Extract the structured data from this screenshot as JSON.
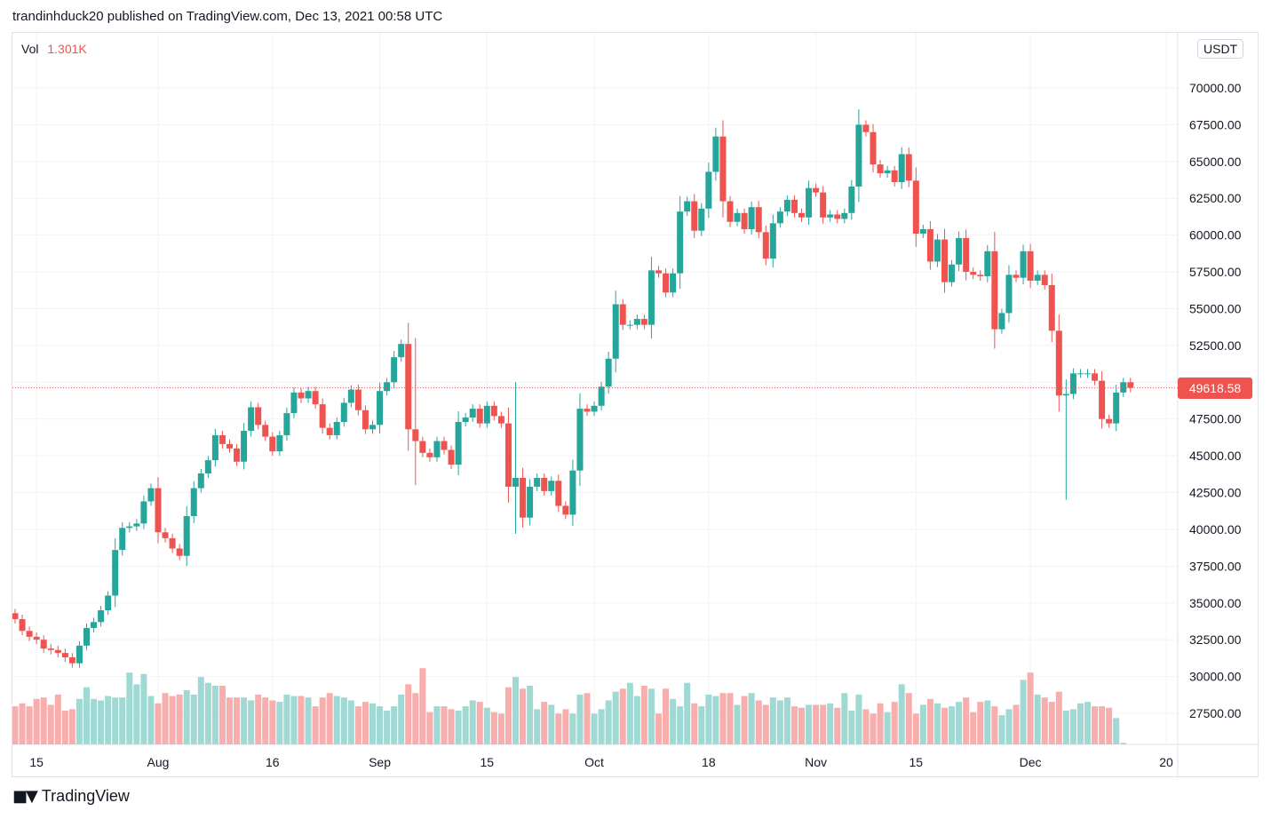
{
  "header": {
    "publisher_text": "trandinhduck20 published on TradingView.com, Dec 13, 2021 00:58 UTC"
  },
  "legend": {
    "vol_label": "Vol",
    "vol_value": "1.301K"
  },
  "currency": "USDT",
  "last_price_label": "49618.58",
  "footer": {
    "brand": "TradingView"
  },
  "colors": {
    "up": "#26a69a",
    "down": "#ef5350",
    "vol_up": "#a0d9d3",
    "vol_down": "#f7aeac",
    "grid": "#f0f3fa"
  },
  "chart_data": {
    "type": "candlestick",
    "title": "",
    "symbol_quote": "USDT",
    "ylim": [
      25000,
      72500
    ],
    "y_ticks": [
      27500,
      30000,
      32500,
      35000,
      37500,
      40000,
      42500,
      45000,
      47500,
      50000,
      52500,
      55000,
      57500,
      60000,
      62500,
      65000,
      67500,
      70000
    ],
    "y_tick_labels": [
      "27500.00",
      "30000.00",
      "32500.00",
      "35000.00",
      "37500.00",
      "40000.00",
      "42500.00",
      "45000.00",
      "47500.00",
      "50000.00",
      "52500.00",
      "55000.00",
      "57500.00",
      "60000.00",
      "62500.00",
      "65000.00",
      "67500.00",
      "70000.00"
    ],
    "x_tick_labels": [
      "15",
      "Aug",
      "16",
      "Sep",
      "15",
      "Oct",
      "18",
      "Nov",
      "15",
      "Dec",
      "20"
    ],
    "x_tick_day_index": [
      3,
      20,
      36,
      51,
      66,
      81,
      97,
      112,
      126,
      142,
      161
    ],
    "start_date": "2021-07-12",
    "last_price": 49618.58,
    "grid": true,
    "closes": [
      33900,
      33100,
      32700,
      32500,
      31900,
      31800,
      31600,
      31300,
      30900,
      32100,
      33300,
      33700,
      34500,
      35500,
      38600,
      40100,
      40200,
      40400,
      41900,
      42800,
      39800,
      39400,
      38700,
      38200,
      40900,
      42800,
      43800,
      44700,
      46400,
      45800,
      45500,
      44600,
      46700,
      48300,
      47100,
      46300,
      45300,
      46400,
      47900,
      49300,
      48900,
      49400,
      48500,
      46900,
      46400,
      47300,
      48600,
      49500,
      48100,
      46800,
      47100,
      49400,
      50000,
      51700,
      52600,
      46800,
      46000,
      45200,
      44900,
      46000,
      45400,
      44400,
      47300,
      47600,
      48200,
      47200,
      48400,
      47700,
      47200,
      42900,
      43500,
      40800,
      42900,
      43500,
      42600,
      43300,
      41600,
      41000,
      44000,
      48200,
      48000,
      48400,
      49700,
      51600,
      55300,
      53900,
      53900,
      54300,
      53900,
      57600,
      57400,
      56100,
      57400,
      61600,
      62300,
      60300,
      61800,
      64300,
      66700,
      62300,
      60900,
      61500,
      60400,
      61900,
      60200,
      58400,
      60800,
      61600,
      62400,
      61500,
      61200,
      63200,
      62900,
      61200,
      61400,
      61100,
      61500,
      63300,
      67500,
      67000,
      64800,
      64200,
      64400,
      63600,
      65500,
      63700,
      60100,
      60400,
      58200,
      59700,
      56800,
      58000,
      59800,
      57500,
      57300,
      57200,
      58900,
      53600,
      54700,
      57300,
      57100,
      58900,
      56900,
      57300,
      56600,
      53500,
      49100,
      49200,
      50600,
      50600,
      50600,
      50100,
      47500,
      47200,
      49300,
      50000,
      49618.58
    ],
    "volume_scale_max": 1.0,
    "volumes": [
      0.26,
      0.28,
      0.26,
      0.31,
      0.32,
      0.27,
      0.34,
      0.23,
      0.24,
      0.31,
      0.39,
      0.31,
      0.3,
      0.33,
      0.32,
      0.32,
      0.49,
      0.41,
      0.48,
      0.33,
      0.28,
      0.35,
      0.33,
      0.34,
      0.37,
      0.34,
      0.46,
      0.42,
      0.4,
      0.4,
      0.32,
      0.32,
      0.32,
      0.3,
      0.34,
      0.32,
      0.3,
      0.29,
      0.34,
      0.33,
      0.33,
      0.32,
      0.26,
      0.32,
      0.35,
      0.33,
      0.32,
      0.3,
      0.26,
      0.29,
      0.28,
      0.26,
      0.23,
      0.26,
      0.34,
      0.41,
      0.35,
      0.52,
      0.22,
      0.26,
      0.26,
      0.24,
      0.23,
      0.26,
      0.3,
      0.29,
      0.25,
      0.22,
      0.21,
      0.39,
      0.46,
      0.38,
      0.4,
      0.24,
      0.29,
      0.27,
      0.21,
      0.24,
      0.21,
      0.34,
      0.35,
      0.21,
      0.24,
      0.3,
      0.36,
      0.38,
      0.42,
      0.33,
      0.4,
      0.38,
      0.21,
      0.38,
      0.31,
      0.26,
      0.42,
      0.28,
      0.26,
      0.34,
      0.33,
      0.35,
      0.35,
      0.27,
      0.33,
      0.35,
      0.3,
      0.27,
      0.32,
      0.3,
      0.32,
      0.26,
      0.25,
      0.27,
      0.27,
      0.27,
      0.28,
      0.25,
      0.35,
      0.23,
      0.34,
      0.24,
      0.21,
      0.28,
      0.22,
      0.29,
      0.41,
      0.35,
      0.21,
      0.27,
      0.31,
      0.28,
      0.25,
      0.26,
      0.29,
      0.32,
      0.22,
      0.29,
      0.3,
      0.26,
      0.2,
      0.24,
      0.27,
      0.44,
      0.49,
      0.34,
      0.32,
      0.29,
      0.36,
      0.23,
      0.24,
      0.28,
      0.29,
      0.26,
      0.26,
      0.25,
      0.18,
      0.01
    ],
    "wick_overrides": {
      "147": [
        42000,
        50200
      ],
      "56": [
        43000,
        53000
      ],
      "70": [
        39700,
        50000
      ]
    }
  }
}
